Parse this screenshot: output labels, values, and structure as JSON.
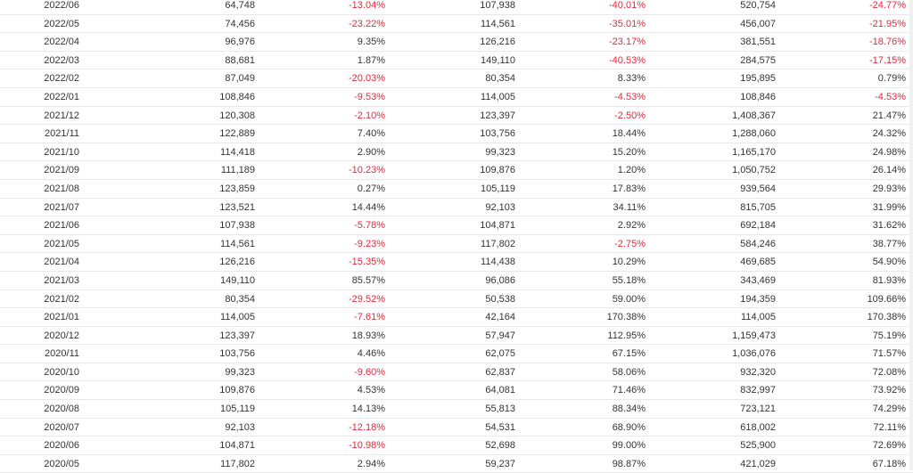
{
  "table": {
    "rows": [
      {
        "month": "2022/06",
        "v1": "64,748",
        "p1": "-13.04%",
        "v2": "107,938",
        "p2": "-40.01%",
        "v3": "520,754",
        "p3": "-24.77%"
      },
      {
        "month": "2022/05",
        "v1": "74,456",
        "p1": "-23.22%",
        "v2": "114,561",
        "p2": "-35.01%",
        "v3": "456,007",
        "p3": "-21.95%"
      },
      {
        "month": "2022/04",
        "v1": "96,976",
        "p1": "9.35%",
        "v2": "126,216",
        "p2": "-23.17%",
        "v3": "381,551",
        "p3": "-18.76%"
      },
      {
        "month": "2022/03",
        "v1": "88,681",
        "p1": "1.87%",
        "v2": "149,110",
        "p2": "-40.53%",
        "v3": "284,575",
        "p3": "-17.15%"
      },
      {
        "month": "2022/02",
        "v1": "87,049",
        "p1": "-20.03%",
        "v2": "80,354",
        "p2": "8.33%",
        "v3": "195,895",
        "p3": "0.79%"
      },
      {
        "month": "2022/01",
        "v1": "108,846",
        "p1": "-9.53%",
        "v2": "114,005",
        "p2": "-4.53%",
        "v3": "108,846",
        "p3": "-4.53%"
      },
      {
        "month": "2021/12",
        "v1": "120,308",
        "p1": "-2.10%",
        "v2": "123,397",
        "p2": "-2.50%",
        "v3": "1,408,367",
        "p3": "21.47%"
      },
      {
        "month": "2021/11",
        "v1": "122,889",
        "p1": "7.40%",
        "v2": "103,756",
        "p2": "18.44%",
        "v3": "1,288,060",
        "p3": "24.32%"
      },
      {
        "month": "2021/10",
        "v1": "114,418",
        "p1": "2.90%",
        "v2": "99,323",
        "p2": "15.20%",
        "v3": "1,165,170",
        "p3": "24.98%"
      },
      {
        "month": "2021/09",
        "v1": "111,189",
        "p1": "-10.23%",
        "v2": "109,876",
        "p2": "1.20%",
        "v3": "1,050,752",
        "p3": "26.14%"
      },
      {
        "month": "2021/08",
        "v1": "123,859",
        "p1": "0.27%",
        "v2": "105,119",
        "p2": "17.83%",
        "v3": "939,564",
        "p3": "29.93%"
      },
      {
        "month": "2021/07",
        "v1": "123,521",
        "p1": "14.44%",
        "v2": "92,103",
        "p2": "34.11%",
        "v3": "815,705",
        "p3": "31.99%"
      },
      {
        "month": "2021/06",
        "v1": "107,938",
        "p1": "-5.78%",
        "v2": "104,871",
        "p2": "2.92%",
        "v3": "692,184",
        "p3": "31.62%"
      },
      {
        "month": "2021/05",
        "v1": "114,561",
        "p1": "-9.23%",
        "v2": "117,802",
        "p2": "-2.75%",
        "v3": "584,246",
        "p3": "38.77%"
      },
      {
        "month": "2021/04",
        "v1": "126,216",
        "p1": "-15.35%",
        "v2": "114,438",
        "p2": "10.29%",
        "v3": "469,685",
        "p3": "54.90%"
      },
      {
        "month": "2021/03",
        "v1": "149,110",
        "p1": "85.57%",
        "v2": "96,086",
        "p2": "55.18%",
        "v3": "343,469",
        "p3": "81.93%"
      },
      {
        "month": "2021/02",
        "v1": "80,354",
        "p1": "-29.52%",
        "v2": "50,538",
        "p2": "59.00%",
        "v3": "194,359",
        "p3": "109.66%"
      },
      {
        "month": "2021/01",
        "v1": "114,005",
        "p1": "-7.61%",
        "v2": "42,164",
        "p2": "170.38%",
        "v3": "114,005",
        "p3": "170.38%"
      },
      {
        "month": "2020/12",
        "v1": "123,397",
        "p1": "18.93%",
        "v2": "57,947",
        "p2": "112.95%",
        "v3": "1,159,473",
        "p3": "75.19%"
      },
      {
        "month": "2020/11",
        "v1": "103,756",
        "p1": "4.46%",
        "v2": "62,075",
        "p2": "67.15%",
        "v3": "1,036,076",
        "p3": "71.57%"
      },
      {
        "month": "2020/10",
        "v1": "99,323",
        "p1": "-9.60%",
        "v2": "62,837",
        "p2": "58.06%",
        "v3": "932,320",
        "p3": "72.08%"
      },
      {
        "month": "2020/09",
        "v1": "109,876",
        "p1": "4.53%",
        "v2": "64,081",
        "p2": "71.46%",
        "v3": "832,997",
        "p3": "73.92%"
      },
      {
        "month": "2020/08",
        "v1": "105,119",
        "p1": "14.13%",
        "v2": "55,813",
        "p2": "88.34%",
        "v3": "723,121",
        "p3": "74.29%"
      },
      {
        "month": "2020/07",
        "v1": "92,103",
        "p1": "-12.18%",
        "v2": "54,531",
        "p2": "68.90%",
        "v3": "618,002",
        "p3": "72.11%"
      },
      {
        "month": "2020/06",
        "v1": "104,871",
        "p1": "-10.98%",
        "v2": "52,698",
        "p2": "99.00%",
        "v3": "525,900",
        "p3": "72.69%"
      },
      {
        "month": "2020/05",
        "v1": "117,802",
        "p1": "2.94%",
        "v2": "59,237",
        "p2": "98.87%",
        "v3": "421,029",
        "p3": "67.18%"
      }
    ],
    "negative_color": "#e8263b",
    "text_color": "#333333"
  }
}
